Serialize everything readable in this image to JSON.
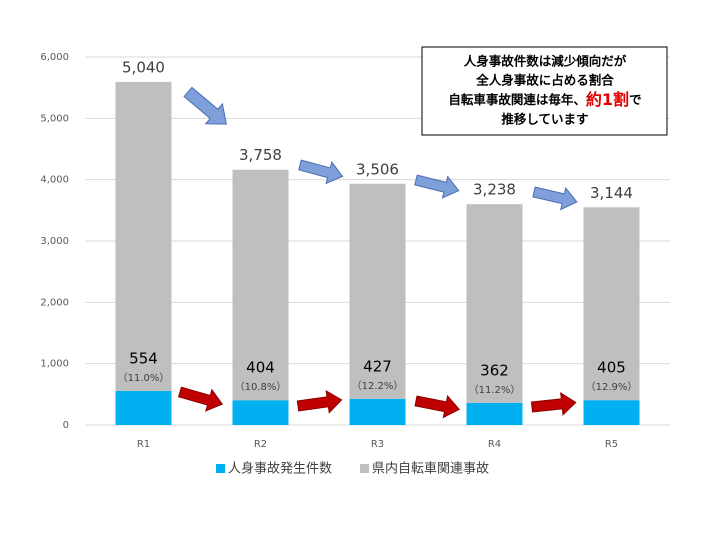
{
  "chart_data": {
    "type": "stacked-bar",
    "categories": [
      "R1",
      "R2",
      "R3",
      "R4",
      "R5"
    ],
    "series": [
      {
        "name": "人身事故発生件数",
        "color": "#00b0f0",
        "values": [
          554,
          404,
          427,
          362,
          405
        ],
        "share_labels": [
          "（11.0%）",
          "（10.8%）",
          "（12.2%）",
          "（11.2%）",
          "（12.9%）"
        ]
      },
      {
        "name": "県内自転車関連事故",
        "color": "#bfbfbf",
        "values": [
          5040,
          3758,
          3506,
          3238,
          3144
        ],
        "value_labels": [
          "5,040",
          "3,758",
          "3,506",
          "3,238",
          "3,144"
        ]
      }
    ],
    "ylim": [
      0,
      6000
    ],
    "yticks": [
      0,
      {
        "value": 1000,
        "label": "1,000"
      },
      {
        "value": 2000,
        "label": "2,000"
      },
      {
        "value": 3000,
        "label": "3,000"
      },
      {
        "value": 4000,
        "label": "4,000"
      },
      {
        "value": 5000,
        "label": "5,000"
      },
      {
        "value": 6000,
        "label": "6,000"
      }
    ],
    "grid": true,
    "legend": "bottom",
    "annotation": {
      "line1": "人身事故件数は減少傾向だが",
      "line2": "全人身事故に占める割合",
      "line3a": "自転車事故関連は毎年、",
      "line3b": "約1割",
      "line3c": "で",
      "line4": "推移しています"
    }
  }
}
